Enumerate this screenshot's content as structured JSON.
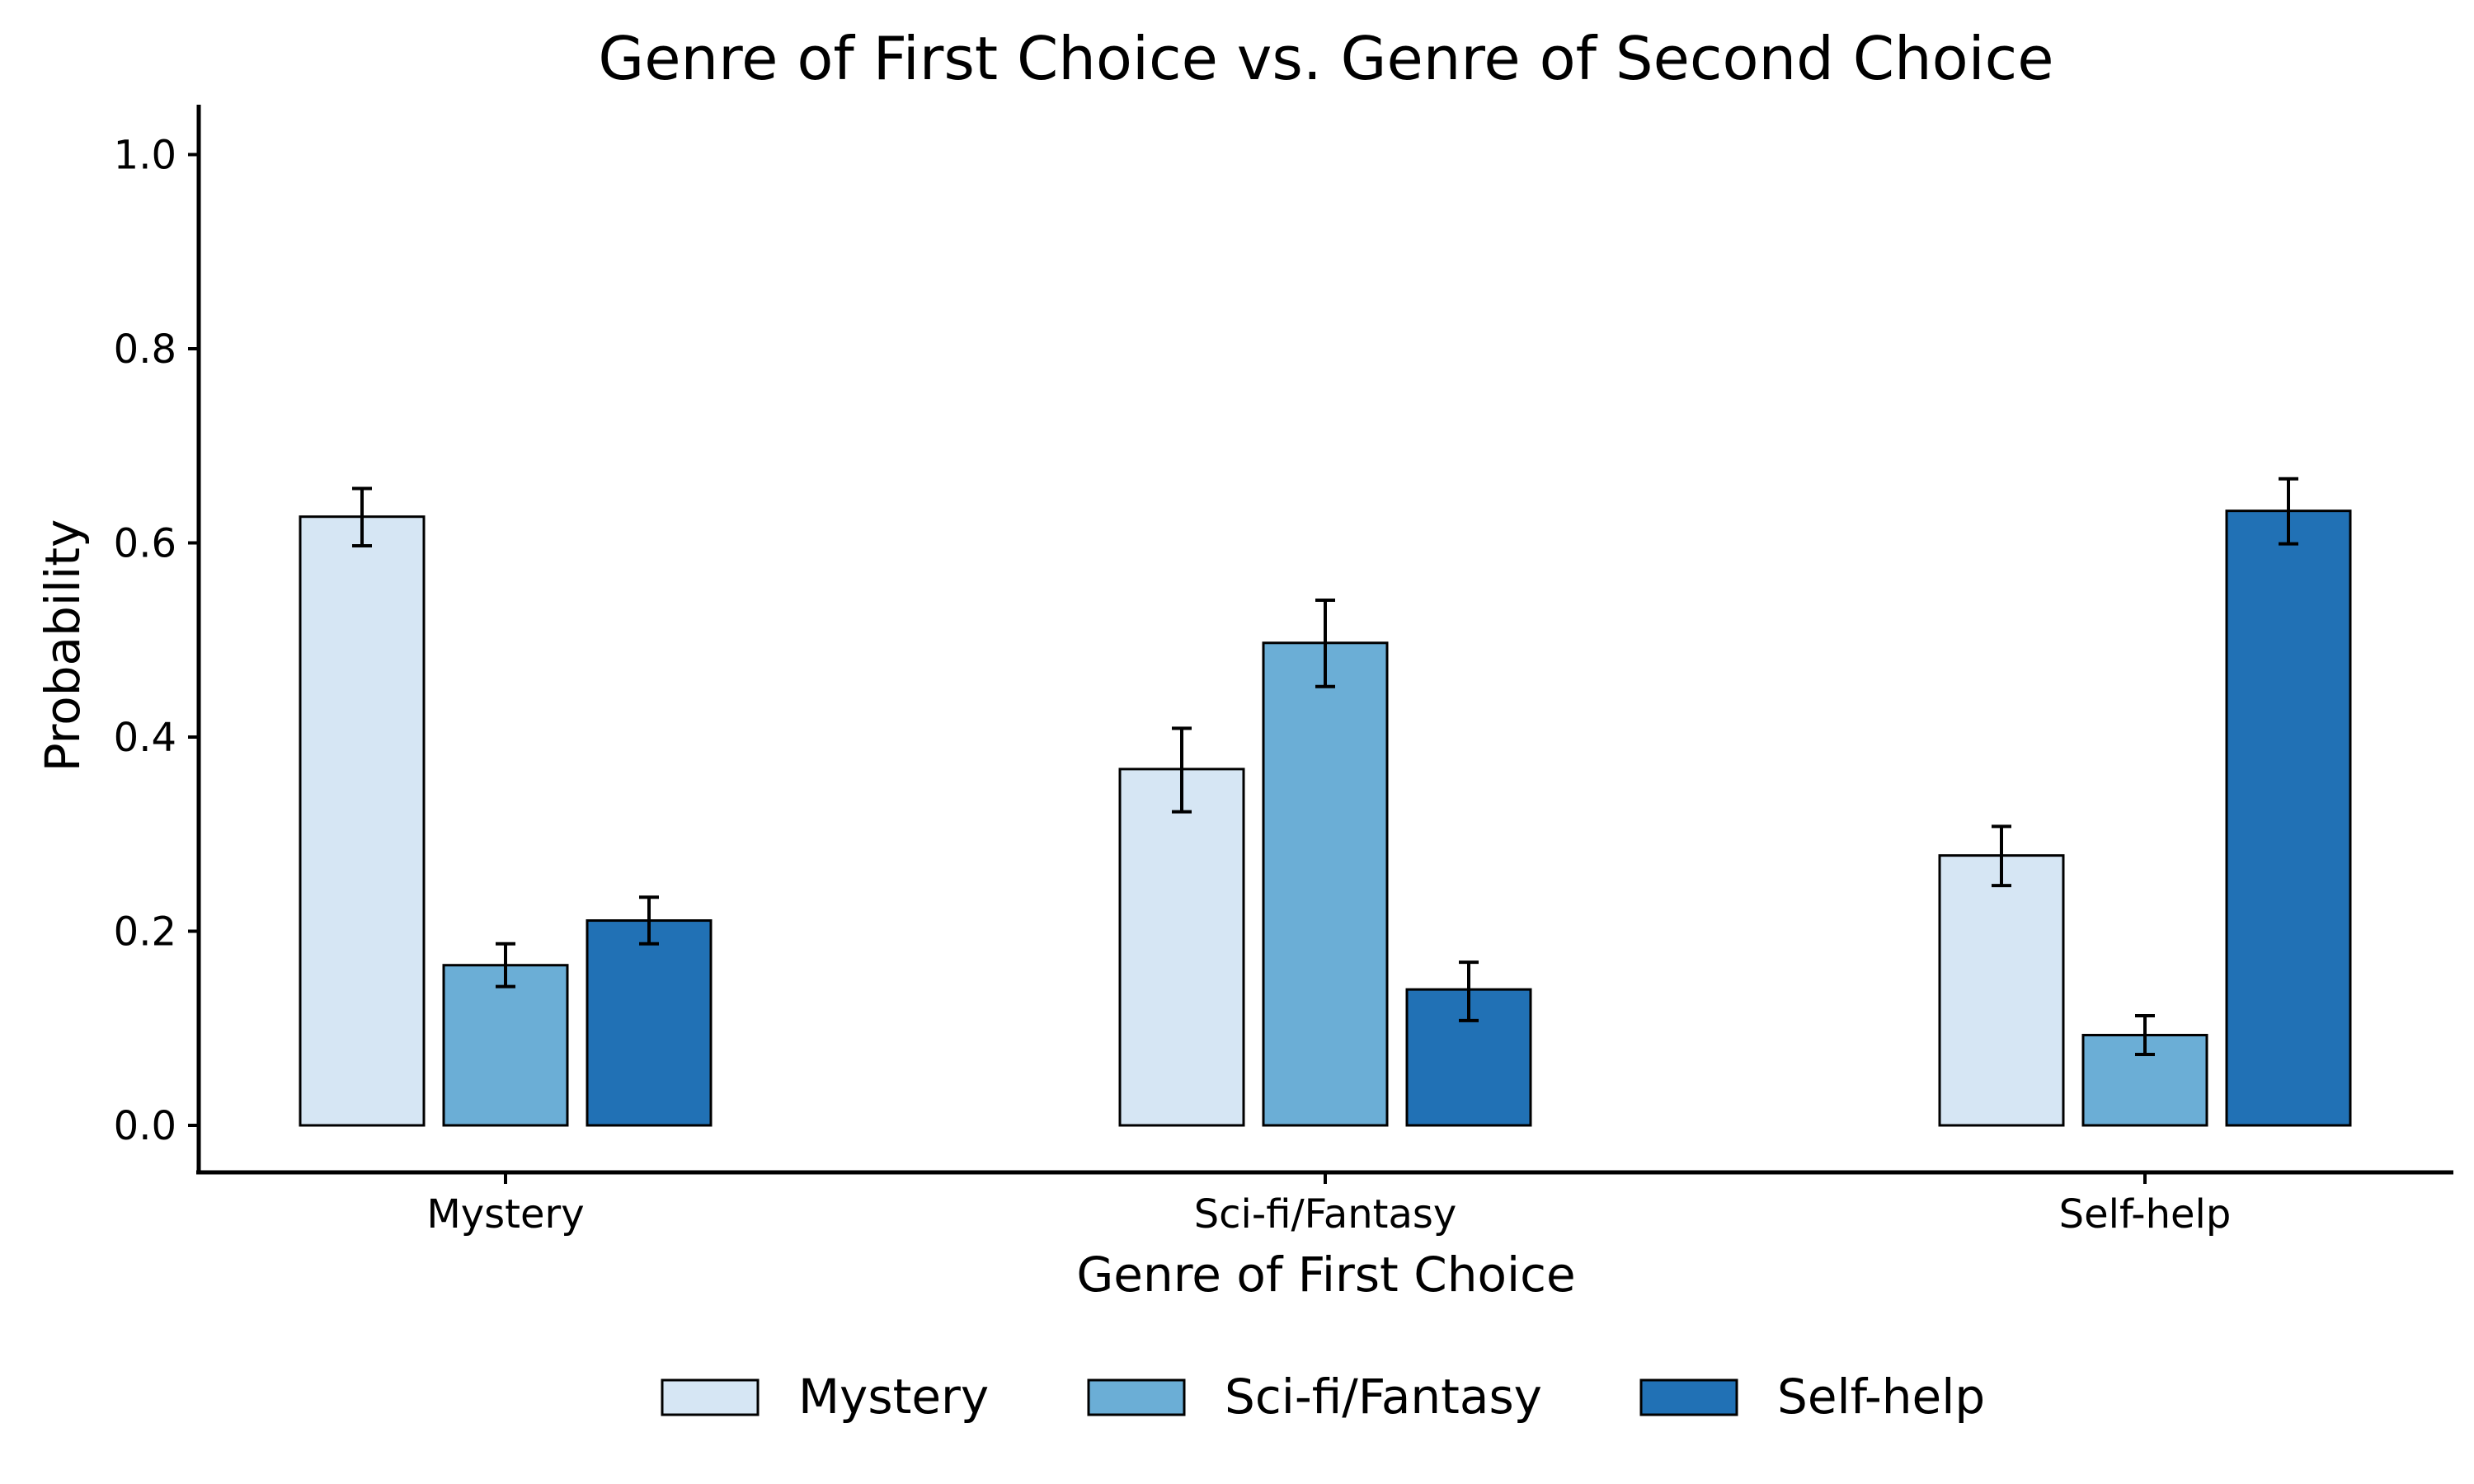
{
  "chart_data": {
    "type": "bar",
    "title": "Genre of First Choice vs. Genre of Second Choice",
    "xlabel": "Genre of First Choice",
    "ylabel": "Probability",
    "categories": [
      "Mystery",
      "Sci-fi/Fantasy",
      "Self-help"
    ],
    "ylim": [
      -0.05,
      1.05
    ],
    "yticks": [
      0.0,
      0.2,
      0.4,
      0.6,
      0.8,
      1.0
    ],
    "ytick_labels": [
      "0.0",
      "0.2",
      "0.4",
      "0.6",
      "0.8",
      "1.0"
    ],
    "grid": false,
    "legend_position": "bottom-center",
    "series": [
      {
        "name": "Mystery",
        "color": "#d6e6f4",
        "values": [
          0.627,
          0.367,
          0.278
        ],
        "error_low": [
          0.597,
          0.323,
          0.247
        ],
        "error_high": [
          0.656,
          0.409,
          0.308
        ]
      },
      {
        "name": "Sci-fi/Fantasy",
        "color": "#6baed6",
        "values": [
          0.165,
          0.497,
          0.093
        ],
        "error_low": [
          0.143,
          0.452,
          0.073
        ],
        "error_high": [
          0.187,
          0.541,
          0.113
        ]
      },
      {
        "name": "Self-help",
        "color": "#2171b5",
        "values": [
          0.211,
          0.14,
          0.633
        ],
        "error_low": [
          0.187,
          0.108,
          0.599
        ],
        "error_high": [
          0.235,
          0.168,
          0.666
        ]
      }
    ]
  }
}
